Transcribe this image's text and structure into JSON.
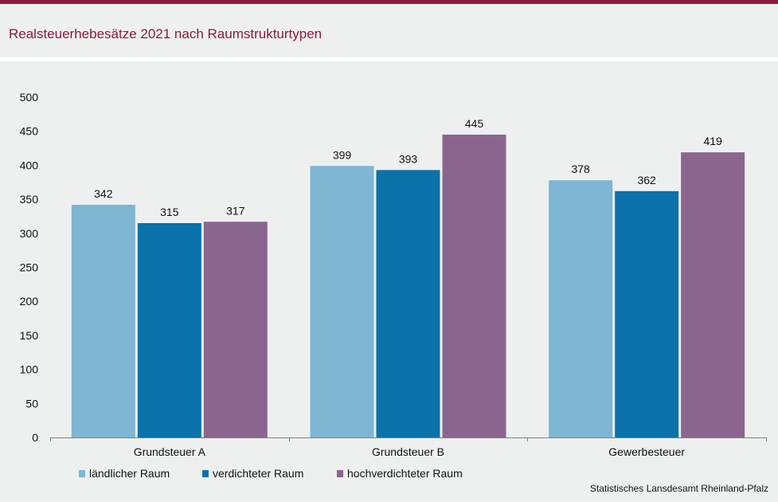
{
  "title": "Realsteuerhebesätze 2021 nach Raumstrukturtypen",
  "source": "Statistisches Lansdesamt Rheinland-Pfalz",
  "colors": {
    "accent": "#8a1c3a",
    "background": "#eef0ef",
    "series": [
      "#7fb6d4",
      "#0a72a8",
      "#8a668f"
    ]
  },
  "chart_data": {
    "type": "bar",
    "title": "Realsteuerhebesätze 2021 nach Raumstrukturtypen",
    "xlabel": "",
    "ylabel": "",
    "ylim": [
      0,
      500
    ],
    "yticks": [
      0,
      50,
      100,
      150,
      200,
      250,
      300,
      350,
      400,
      450,
      500
    ],
    "grid": false,
    "legend_position": "bottom-left",
    "categories": [
      "Grundsteuer A",
      "Grundsteuer B",
      "Gewerbesteuer"
    ],
    "series": [
      {
        "name": "ländlicher Raum",
        "values": [
          342,
          399,
          378
        ]
      },
      {
        "name": "verdichteter Raum",
        "values": [
          315,
          393,
          362
        ]
      },
      {
        "name": "hochverdichteter Raum",
        "values": [
          317,
          445,
          419
        ]
      }
    ]
  }
}
